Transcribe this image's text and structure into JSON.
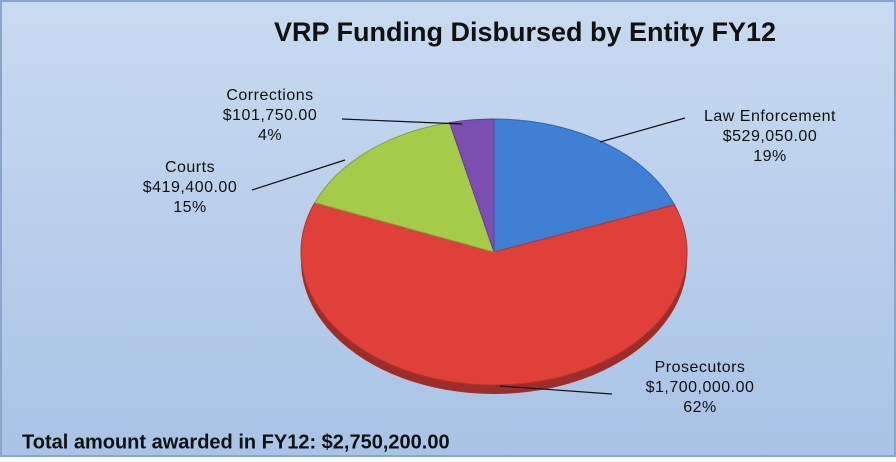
{
  "chart_data": {
    "type": "pie",
    "title": "VRP Funding Disbursed by Entity FY12",
    "categories": [
      "Law Enforcement",
      "Prosecutors",
      "Courts",
      "Corrections"
    ],
    "values": [
      529050,
      1700000,
      419400,
      101750
    ],
    "value_labels": [
      "$529,050.00",
      "$1,700,000.00",
      "$419,400.00",
      "$101,750.00"
    ],
    "percent_labels": [
      "19%",
      "62%",
      "15%",
      "4%"
    ],
    "colors": [
      "#3f7fd4",
      "#e0403a",
      "#a6cb4a",
      "#7a4fb0"
    ],
    "footer": "Total amount awarded in FY12: $2,750,200.00"
  }
}
